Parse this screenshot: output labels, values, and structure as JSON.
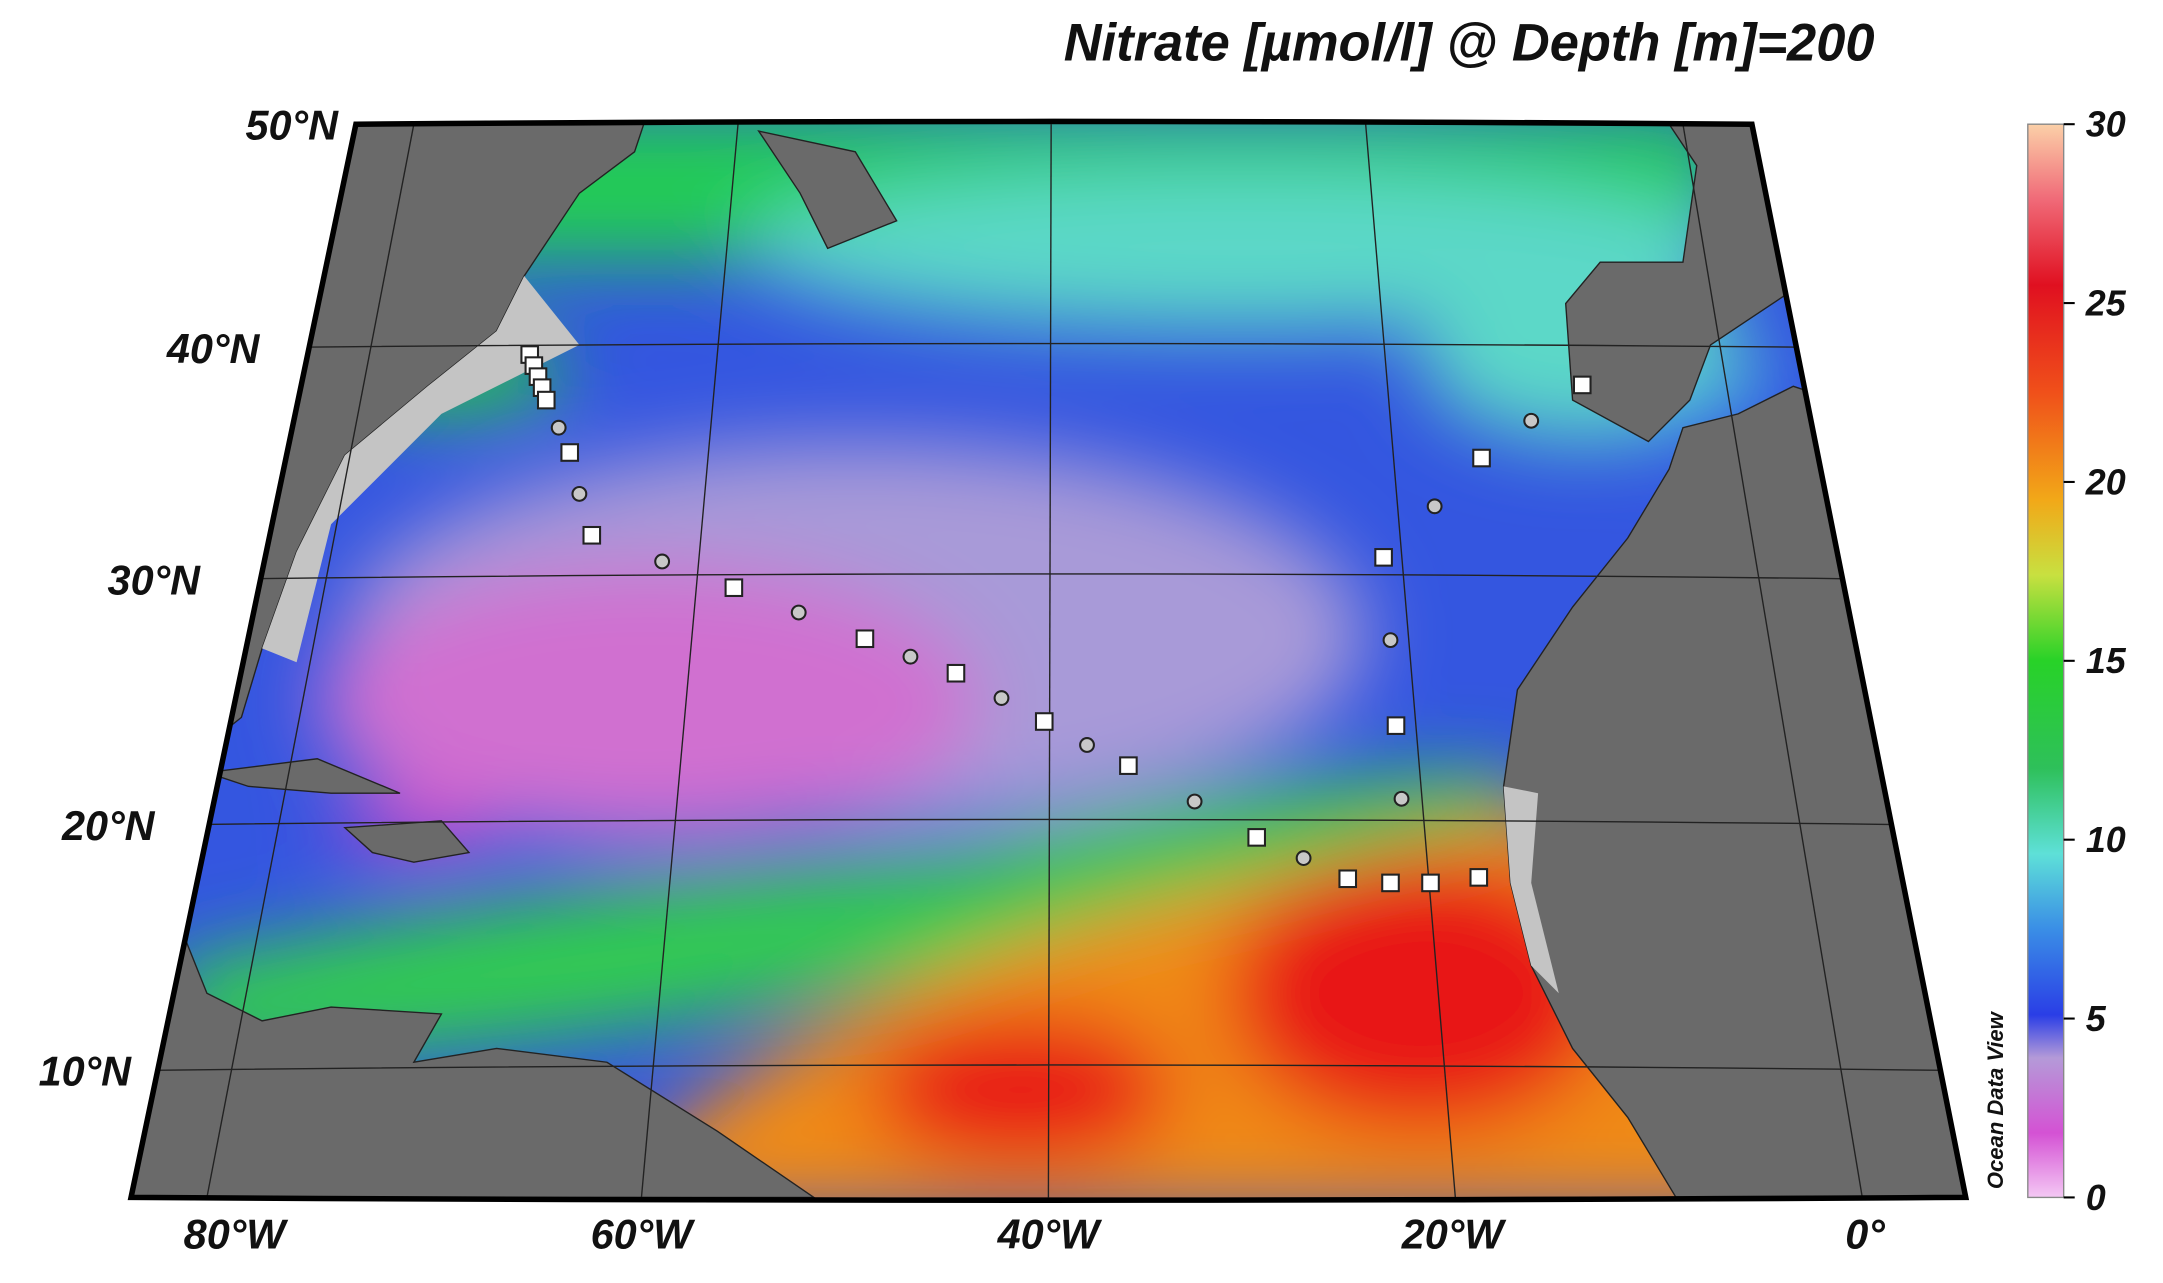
{
  "title": "Nitrate [µmol/l] @ Depth [m]=200",
  "lat_labels": [
    "50°N",
    "40°N",
    "30°N",
    "20°N",
    "10°N"
  ],
  "lon_labels": [
    "80°W",
    "60°W",
    "40°W",
    "20°W",
    "0°"
  ],
  "colorbar": {
    "lim": [
      0,
      30
    ],
    "ticks": [
      0,
      5,
      10,
      15,
      20,
      25,
      30
    ],
    "label": "Ocean Data View"
  }
}
